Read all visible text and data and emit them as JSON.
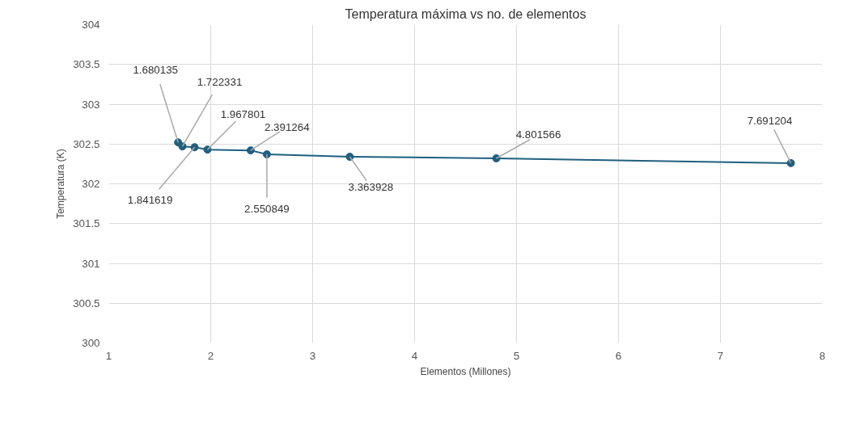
{
  "chart_data": {
    "type": "line",
    "title": "Temperatura máxima vs no. de elementos",
    "xlabel": "Elementos (Millones)",
    "ylabel": "Temperatura (K)",
    "x": [
      1.680135,
      1.722331,
      1.841619,
      1.967801,
      2.391264,
      2.550849,
      3.363928,
      4.801566,
      7.691204
    ],
    "series": [
      {
        "color": "#1f5f7f",
        "values": [
          302.52,
          302.47,
          302.46,
          302.43,
          302.42,
          302.37,
          302.34,
          302.32,
          302.26
        ]
      }
    ],
    "annotations": [
      {
        "text": "1.680135",
        "x": 1.680135,
        "y": 302.52
      },
      {
        "text": "1.722331",
        "x": 1.722331,
        "y": 302.47
      },
      {
        "text": "1.841619",
        "x": 1.841619,
        "y": 302.46
      },
      {
        "text": "1.967801",
        "x": 1.967801,
        "y": 302.43
      },
      {
        "text": "2.391264",
        "x": 2.391264,
        "y": 302.42
      },
      {
        "text": "2.550849",
        "x": 2.550849,
        "y": 302.37
      },
      {
        "text": "3.363928",
        "x": 3.363928,
        "y": 302.34
      },
      {
        "text": "4.801566",
        "x": 4.801566,
        "y": 302.32
      },
      {
        "text": "7.691204",
        "x": 7.691204,
        "y": 302.26
      }
    ],
    "xlim": [
      1,
      8
    ],
    "xticks": [
      1,
      2,
      3,
      4,
      5,
      6,
      7,
      8
    ],
    "ylim": [
      300,
      304
    ],
    "yticks": [
      300,
      300.5,
      301,
      301.5,
      302,
      302.5,
      303,
      303.5,
      304
    ],
    "grid": true,
    "marker": "circle",
    "line_style": "solid"
  }
}
